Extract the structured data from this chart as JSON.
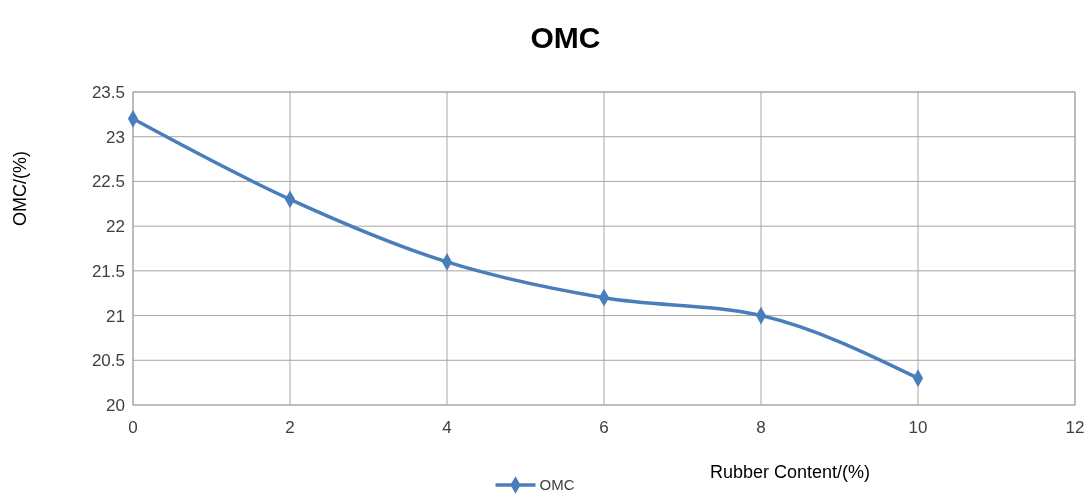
{
  "chart_data": {
    "type": "line",
    "title": "OMC",
    "xlabel": "Rubber Content/(%)",
    "ylabel": "OMC/(%)",
    "x": [
      0,
      2,
      4,
      6,
      8,
      10
    ],
    "series": [
      {
        "name": "OMC",
        "color": "#4a7ebb",
        "values": [
          23.2,
          22.3,
          21.6,
          21.2,
          21.0,
          20.3
        ]
      }
    ],
    "xlim": [
      0,
      12
    ],
    "xticks": [
      0,
      2,
      4,
      6,
      8,
      10,
      12
    ],
    "ylim": [
      20,
      23.5
    ],
    "yticks": [
      20,
      20.5,
      21,
      21.5,
      22,
      22.5,
      23,
      23.5
    ],
    "grid": true,
    "legend": "bottom",
    "marker": "diamond",
    "line_style": "solid"
  }
}
